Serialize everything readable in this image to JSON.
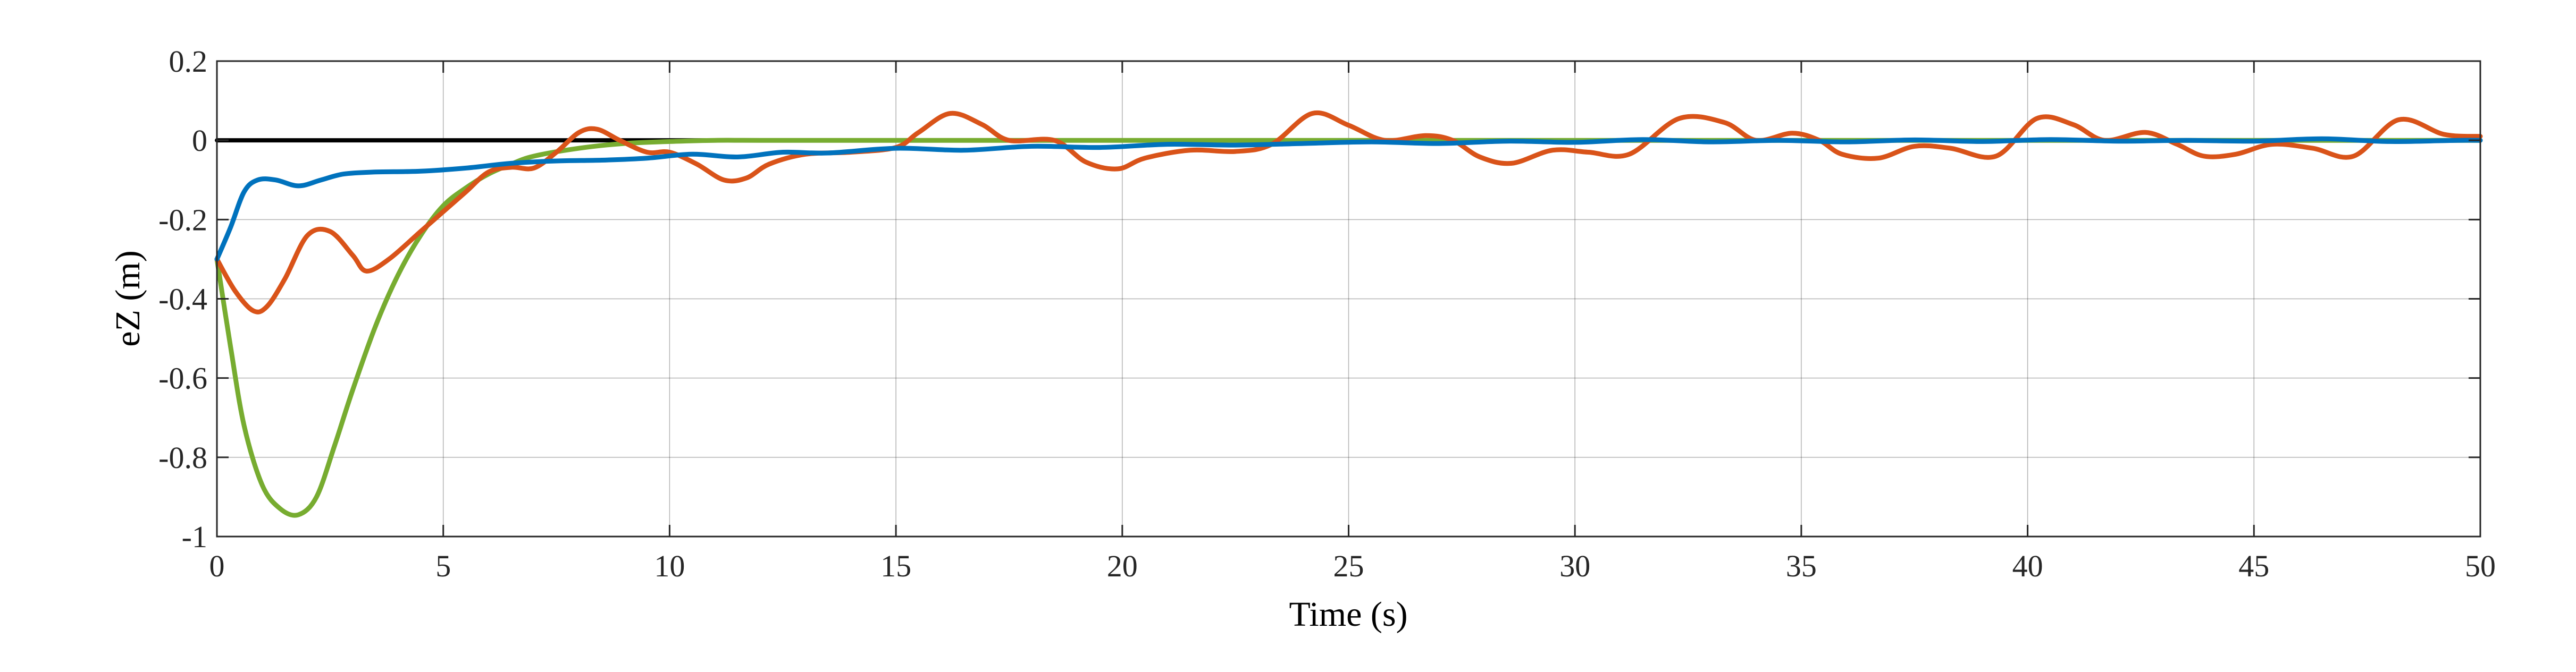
{
  "chart_data": {
    "type": "line",
    "title": "",
    "xlabel": "Time (s)",
    "ylabel": "eZ (m)",
    "xlim": [
      0,
      50
    ],
    "ylim": [
      -1,
      0.2
    ],
    "x_ticks": [
      0,
      5,
      10,
      15,
      20,
      25,
      30,
      35,
      40,
      45,
      50
    ],
    "y_ticks": [
      -1,
      -0.8,
      -0.6,
      -0.4,
      -0.2,
      0,
      0.2
    ],
    "x_tick_labels": [
      "0",
      "5",
      "10",
      "15",
      "20",
      "25",
      "30",
      "35",
      "40",
      "45",
      "50"
    ],
    "y_tick_labels": [
      "-1",
      "-0.8",
      "-0.6",
      "-0.4",
      "-0.2",
      "0",
      "0.2"
    ],
    "grid": true,
    "legend": "none",
    "series": [
      {
        "color": "#000000",
        "x": [
          0,
          50
        ],
        "y": [
          0,
          0
        ]
      },
      {
        "color": "#77AC30",
        "x": [
          0,
          0.3,
          0.6,
          1.0,
          1.4,
          1.8,
          2.2,
          2.6,
          3.0,
          3.5,
          4.0,
          4.5,
          5.0,
          5.5,
          6.0,
          6.5,
          7.0,
          8.0,
          9.0,
          10.0,
          11.0,
          12.0,
          15.0,
          20.0,
          25.0,
          30.0,
          35.0,
          40.0,
          45.0,
          50.0
        ],
        "y": [
          -0.3,
          -0.52,
          -0.72,
          -0.87,
          -0.93,
          -0.945,
          -0.9,
          -0.77,
          -0.63,
          -0.47,
          -0.34,
          -0.24,
          -0.165,
          -0.12,
          -0.085,
          -0.06,
          -0.04,
          -0.02,
          -0.008,
          -0.003,
          0.0,
          0.0,
          0.0,
          0.0,
          0.0,
          0.0,
          0.0,
          0.0,
          0.0,
          0.0
        ]
      },
      {
        "color": "#D95319",
        "x": [
          0,
          0.4,
          0.8,
          1.1,
          1.5,
          2.0,
          2.5,
          3.0,
          3.3,
          3.8,
          4.5,
          5.0,
          5.5,
          6.0,
          6.5,
          7.0,
          7.5,
          8.0,
          8.4,
          8.9,
          9.5,
          10.0,
          10.6,
          11.2,
          11.7,
          12.2,
          13.0,
          14.0,
          15.0,
          15.5,
          16.2,
          16.9,
          17.5,
          18.5,
          19.2,
          19.9,
          20.5,
          21.5,
          22.5,
          23.3,
          24.2,
          25.0,
          25.8,
          26.7,
          27.3,
          27.9,
          28.6,
          29.5,
          30.3,
          31.2,
          32.3,
          33.3,
          34.0,
          34.8,
          35.4,
          35.9,
          36.7,
          37.5,
          38.3,
          39.3,
          40.2,
          41.0,
          41.7,
          42.6,
          43.3,
          43.9,
          44.6,
          45.4,
          46.3,
          47.2,
          48.2,
          49.2,
          50.0
        ],
        "y": [
          -0.3,
          -0.38,
          -0.43,
          -0.42,
          -0.35,
          -0.24,
          -0.23,
          -0.29,
          -0.33,
          -0.3,
          -0.23,
          -0.18,
          -0.13,
          -0.08,
          -0.068,
          -0.07,
          -0.03,
          0.02,
          0.028,
          0.0,
          -0.03,
          -0.03,
          -0.06,
          -0.1,
          -0.095,
          -0.06,
          -0.035,
          -0.03,
          -0.018,
          0.02,
          0.068,
          0.04,
          0.0,
          0.0,
          -0.055,
          -0.072,
          -0.045,
          -0.025,
          -0.028,
          -0.01,
          0.068,
          0.038,
          0.0,
          0.012,
          0.0,
          -0.042,
          -0.058,
          -0.025,
          -0.03,
          -0.035,
          0.055,
          0.045,
          0.0,
          0.018,
          0.0,
          -0.035,
          -0.045,
          -0.015,
          -0.02,
          -0.04,
          0.055,
          0.04,
          0.0,
          0.02,
          -0.01,
          -0.04,
          -0.035,
          -0.01,
          -0.02,
          -0.04,
          0.052,
          0.015,
          0.01
        ]
      },
      {
        "color": "#0072BD",
        "x": [
          0,
          0.3,
          0.6,
          0.9,
          1.3,
          1.8,
          2.3,
          2.8,
          3.5,
          4.5,
          5.5,
          6.5,
          7.5,
          8.5,
          9.5,
          10.5,
          11.5,
          12.5,
          13.5,
          15.0,
          16.5,
          18.0,
          19.5,
          21.0,
          22.5,
          24.0,
          25.5,
          27.0,
          28.5,
          30.0,
          31.5,
          33.0,
          34.5,
          36.0,
          37.5,
          39.0,
          40.5,
          42.0,
          43.5,
          45.0,
          46.5,
          48.0,
          49.5,
          50.0
        ],
        "y": [
          -0.3,
          -0.22,
          -0.13,
          -0.1,
          -0.1,
          -0.115,
          -0.1,
          -0.085,
          -0.08,
          -0.078,
          -0.07,
          -0.058,
          -0.052,
          -0.05,
          -0.045,
          -0.035,
          -0.042,
          -0.03,
          -0.032,
          -0.02,
          -0.025,
          -0.015,
          -0.018,
          -0.01,
          -0.012,
          -0.008,
          -0.004,
          -0.008,
          -0.002,
          -0.005,
          0.002,
          -0.004,
          0.0,
          -0.004,
          0.001,
          -0.003,
          0.002,
          -0.002,
          0.0,
          -0.002,
          0.004,
          -0.003,
          0.0,
          0.0
        ]
      }
    ]
  }
}
